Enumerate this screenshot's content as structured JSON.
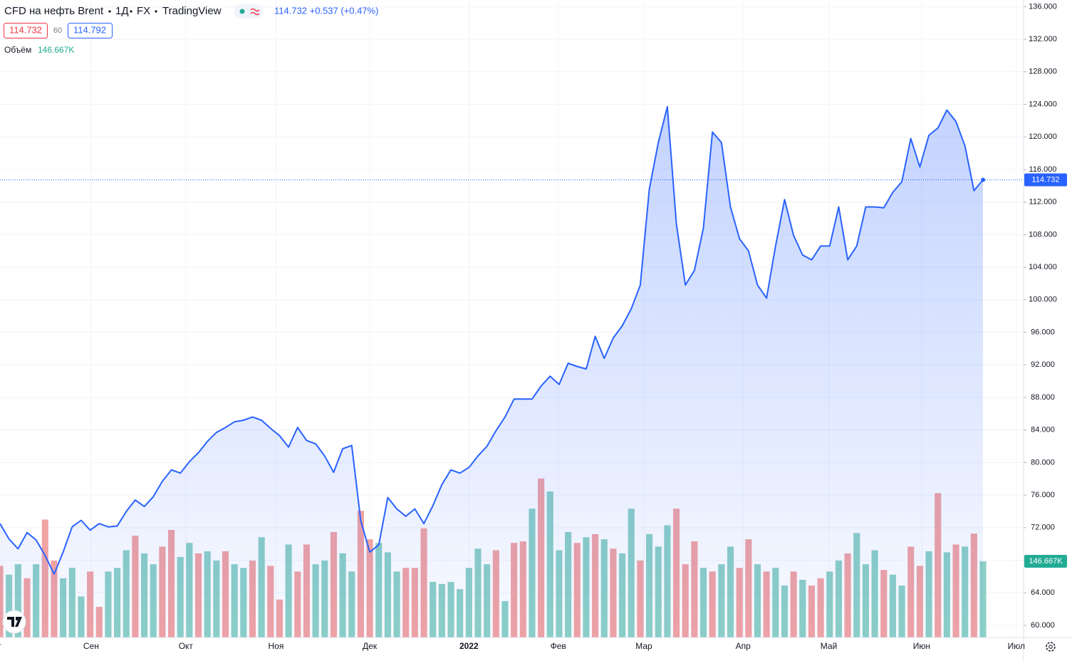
{
  "header": {
    "title": "CFD на нефть Brent",
    "interval": "1Д",
    "exchange": "FX",
    "source": "TradingView",
    "quote": "114.732 +0.537 (+0.47%)",
    "bid": "114.732",
    "spread": "60",
    "ask": "114.792",
    "volume_title": "Объём",
    "volume_value": "146.667K"
  },
  "chart_data": {
    "type": "area",
    "series": [
      {
        "color": "#2962ff",
        "values": [
          72.5,
          70.6,
          69.4,
          71.4,
          70.5,
          68.6,
          66.3,
          69.0,
          72.1,
          72.9,
          71.7,
          72.5,
          72.1,
          72.2,
          74.0,
          75.4,
          74.6,
          75.8,
          77.7,
          79.1,
          78.7,
          80.1,
          81.2,
          82.6,
          83.7,
          84.3,
          85.0,
          85.2,
          85.6,
          85.2,
          84.2,
          83.3,
          81.9,
          84.3,
          82.7,
          82.3,
          80.8,
          78.8,
          81.7,
          82.1,
          72.9,
          69.0,
          69.9,
          75.7,
          74.3,
          73.4,
          74.3,
          72.5,
          74.7,
          77.3,
          79.1,
          78.7,
          79.4,
          80.8,
          82.0,
          83.9,
          85.6,
          87.8,
          87.8,
          87.8,
          89.4,
          90.6,
          89.6,
          92.2,
          91.8,
          91.5,
          95.5,
          92.8,
          95.3,
          96.8,
          98.9,
          101.8,
          113.6,
          119.3,
          123.7,
          109.3,
          101.8,
          103.6,
          108.8,
          120.6,
          119.3,
          111.4,
          107.5,
          106.0,
          101.8,
          100.2,
          106.6,
          112.3,
          107.9,
          105.5,
          104.9,
          106.6,
          106.6,
          111.4,
          104.9,
          106.6,
          111.4,
          111.4,
          111.3,
          113.2,
          114.5,
          119.8,
          116.3,
          120.2,
          121.1,
          123.3,
          121.9,
          118.9,
          113.4,
          114.732
        ]
      }
    ],
    "volume": {
      "values": [
        138,
        121,
        141,
        114,
        141,
        227,
        148,
        114,
        134,
        79,
        127,
        59,
        127,
        134,
        168,
        196,
        162,
        141,
        175,
        207,
        155,
        182,
        162,
        166,
        148,
        166,
        141,
        134,
        148,
        193,
        138,
        73,
        179,
        127,
        179,
        141,
        148,
        203,
        162,
        127,
        244,
        189,
        182,
        164,
        127,
        134,
        134,
        210,
        107,
        103,
        107,
        93,
        134,
        171,
        141,
        168,
        70,
        182,
        185,
        248,
        306,
        281,
        168,
        203,
        182,
        193,
        199,
        189,
        171,
        162,
        248,
        148,
        199,
        175,
        216,
        248,
        141,
        185,
        134,
        127,
        141,
        175,
        134,
        189,
        141,
        127,
        134,
        100,
        127,
        111,
        100,
        114,
        127,
        148,
        162,
        201,
        141,
        168,
        130,
        121,
        100,
        175,
        138,
        166,
        278,
        164,
        179,
        175,
        200,
        146.667
      ],
      "colors": [
        "r",
        "g",
        "g",
        "r",
        "g",
        "r",
        "r",
        "g",
        "g",
        "g",
        "r",
        "r",
        "g",
        "g",
        "g",
        "r",
        "g",
        "g",
        "r",
        "r",
        "g",
        "g",
        "r",
        "g",
        "g",
        "r",
        "g",
        "g",
        "r",
        "g",
        "r",
        "r",
        "g",
        "r",
        "r",
        "g",
        "g",
        "r",
        "g",
        "g",
        "r",
        "r",
        "g",
        "g",
        "g",
        "r",
        "r",
        "r",
        "g",
        "g",
        "g",
        "g",
        "g",
        "g",
        "g",
        "r",
        "g",
        "r",
        "r",
        "g",
        "r",
        "g",
        "g",
        "g",
        "r",
        "g",
        "r",
        "g",
        "r",
        "g",
        "g",
        "r",
        "g",
        "g",
        "g",
        "r",
        "r",
        "r",
        "g",
        "r",
        "g",
        "g",
        "r",
        "r",
        "g",
        "r",
        "g",
        "g",
        "r",
        "g",
        "r",
        "r",
        "g",
        "g",
        "r",
        "g",
        "g",
        "g",
        "r",
        "g",
        "g",
        "r",
        "r",
        "g",
        "r",
        "g",
        "r",
        "g",
        "r",
        "g"
      ],
      "up_color": "#8dd0c6",
      "down_color": "#f2a3a3",
      "ylim": [
        0,
        1227
      ]
    },
    "xlim": [
      0,
      113.5
    ],
    "xticks": [
      {
        "value": -0.6,
        "label": "Авг"
      },
      {
        "value": 10.1,
        "label": "Сен"
      },
      {
        "value": 20.6,
        "label": "Окт"
      },
      {
        "value": 30.6,
        "label": "Ноя"
      },
      {
        "value": 41.0,
        "label": "Дек"
      },
      {
        "value": 52.0,
        "label": "2022"
      },
      {
        "value": 61.9,
        "label": "Фев"
      },
      {
        "value": 71.4,
        "label": "Мар"
      },
      {
        "value": 82.4,
        "label": "Апр"
      },
      {
        "value": 91.9,
        "label": "Май"
      },
      {
        "value": 102.2,
        "label": "Июн"
      },
      {
        "value": 112.7,
        "label": "Июл"
      }
    ],
    "ylim": [
      58.51,
      136.82
    ],
    "yticks": [
      {
        "value": 60,
        "label": "60.000"
      },
      {
        "value": 64,
        "label": "64.000"
      },
      {
        "value": 68,
        "label": "68.000"
      },
      {
        "value": 72,
        "label": "72.000"
      },
      {
        "value": 76,
        "label": "76.000"
      },
      {
        "value": 80,
        "label": "80.000"
      },
      {
        "value": 84,
        "label": "84.000"
      },
      {
        "value": 88,
        "label": "88.000"
      },
      {
        "value": 92,
        "label": "92.000"
      },
      {
        "value": 96,
        "label": "96.000"
      },
      {
        "value": 100,
        "label": "100.000"
      },
      {
        "value": 104,
        "label": "104.000"
      },
      {
        "value": 108,
        "label": "108.000"
      },
      {
        "value": 112,
        "label": "112.000"
      },
      {
        "value": 116,
        "label": "116.000"
      },
      {
        "value": 120,
        "label": "120.000"
      },
      {
        "value": 124,
        "label": "124.000"
      },
      {
        "value": 128,
        "label": "128.000"
      },
      {
        "value": 132,
        "label": "132.000"
      },
      {
        "value": 136,
        "label": "136.000"
      }
    ],
    "grid": true
  }
}
